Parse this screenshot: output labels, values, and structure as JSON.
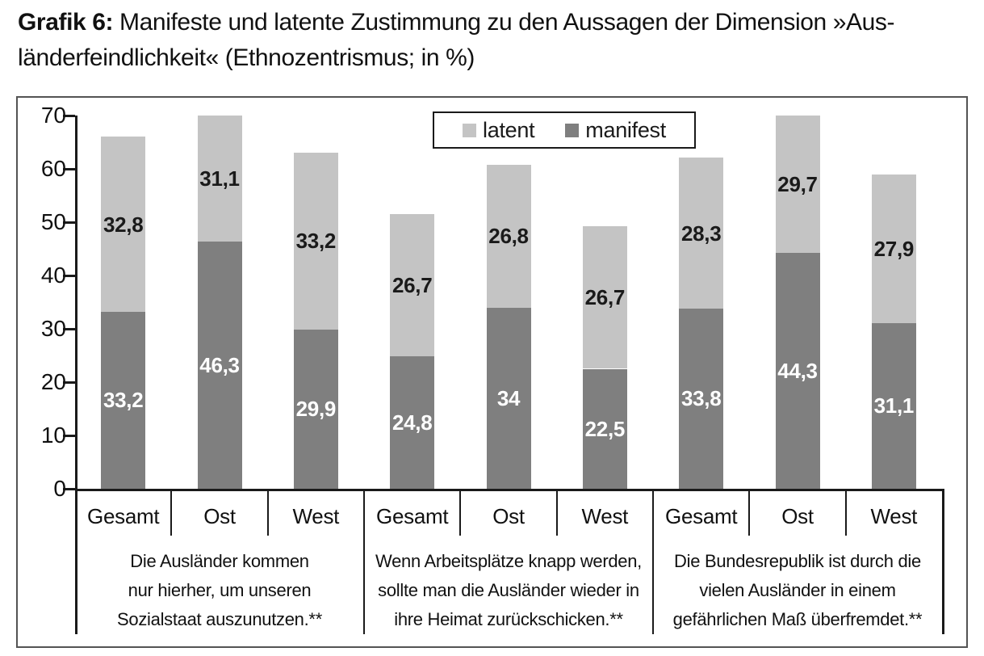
{
  "title": {
    "label": "Grafik 6:",
    "line1": " Manifeste und latente Zustimmung zu den Aussagen der Dimension »Aus-",
    "line2": "länderfeindlichkeit« (Ethnozentrismus; in %)"
  },
  "colors": {
    "manifest": "#7f7f7f",
    "latent": "#c4c4c4",
    "line": "#1a1a1a",
    "box_border": "#545454",
    "manifest_value_text": "#ffffff",
    "latent_value_text": "#1a1a1a"
  },
  "chart_data": {
    "type": "bar",
    "stacked": true,
    "title": "Grafik 6: Manifeste und latente Zustimmung zu den Aussagen der Dimension »Ausländerfeindlichkeit« (Ethnozentrismus; in %)",
    "unit": "%",
    "ylim": [
      0,
      70
    ],
    "yticks": [
      0,
      10,
      20,
      30,
      40,
      50,
      60,
      70
    ],
    "bars_clipped_at_ymax": true,
    "legend": [
      "latent",
      "manifest"
    ],
    "legend_position": "top-center-inside",
    "grid": false,
    "groups": [
      {
        "statement_lines": [
          "Die Ausländer kommen",
          "nur hierher, um unseren",
          "Sozialstaat auszunutzen.**"
        ],
        "bars": [
          {
            "category": "Gesamt",
            "manifest": 33.2,
            "latent": 32.8,
            "manifest_label": "33,2",
            "latent_label": "32,8"
          },
          {
            "category": "Ost",
            "manifest": 46.3,
            "latent": 31.1,
            "manifest_label": "46,3",
            "latent_label": "31,1"
          },
          {
            "category": "West",
            "manifest": 29.9,
            "latent": 33.2,
            "manifest_label": "29,9",
            "latent_label": "33,2"
          }
        ]
      },
      {
        "statement_lines": [
          "Wenn Arbeitsplätze knapp werden,",
          "sollte man die Ausländer wieder in",
          "ihre Heimat zurückschicken.**"
        ],
        "bars": [
          {
            "category": "Gesamt",
            "manifest": 24.8,
            "latent": 26.7,
            "manifest_label": "24,8",
            "latent_label": "26,7"
          },
          {
            "category": "Ost",
            "manifest": 34.0,
            "latent": 26.8,
            "manifest_label": "34",
            "latent_label": "26,8"
          },
          {
            "category": "West",
            "manifest": 22.5,
            "latent": 26.7,
            "manifest_label": "22,5",
            "latent_label": "26,7"
          }
        ]
      },
      {
        "statement_lines": [
          "Die Bundesrepublik ist durch die",
          "vielen Ausländer in einem",
          "gefährlichen Maß überfremdet.**"
        ],
        "bars": [
          {
            "category": "Gesamt",
            "manifest": 33.8,
            "latent": 28.3,
            "manifest_label": "33,8",
            "latent_label": "28,3"
          },
          {
            "category": "Ost",
            "manifest": 44.3,
            "latent": 29.7,
            "manifest_label": "44,3",
            "latent_label": "29,7"
          },
          {
            "category": "West",
            "manifest": 31.1,
            "latent": 27.9,
            "manifest_label": "31,1",
            "latent_label": "27,9"
          }
        ]
      }
    ]
  }
}
